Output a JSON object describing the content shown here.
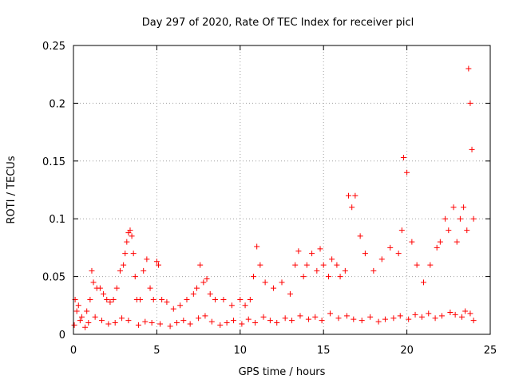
{
  "chart_data": {
    "type": "scatter",
    "title": "Day 297 of 2020, Rate Of TEC Index for receiver picl",
    "xlabel": "GPS time / hours",
    "ylabel": "ROTI / TECUs",
    "xlim": [
      0,
      25
    ],
    "ylim": [
      0,
      0.25
    ],
    "x_ticks": [
      "0",
      "5",
      "10",
      "15",
      "20",
      "25"
    ],
    "y_ticks": [
      "0",
      "0.05",
      "0.1",
      "0.15",
      "0.2",
      "0.25"
    ],
    "grid": true,
    "marker": "plus",
    "color": "#ff0000",
    "series": [
      {
        "x": [
          0.1,
          0.2,
          0.3,
          0.5,
          0.8,
          1.0,
          1.1,
          1.2,
          1.4,
          1.6,
          1.8,
          2.0,
          2.2,
          2.4,
          2.6,
          2.8,
          3.0,
          3.1,
          3.2,
          3.3,
          3.4,
          3.5,
          3.6,
          3.7,
          3.8,
          4.0,
          4.2,
          4.4,
          4.6,
          4.8,
          5.0,
          5.1,
          5.3,
          5.6,
          6.0,
          6.4,
          6.8,
          7.2,
          7.4,
          7.6,
          7.8,
          8.0,
          8.2,
          8.5,
          9.0,
          9.5,
          10.0,
          10.3,
          10.6,
          10.8,
          11.0,
          11.2,
          11.5,
          12.0,
          12.5,
          13.0,
          13.3,
          13.5,
          13.8,
          14.0,
          14.3,
          14.6,
          14.8,
          15.0,
          15.3,
          15.5,
          15.8,
          16.0,
          16.3,
          16.5,
          16.7,
          16.9,
          17.2,
          17.5,
          18.0,
          18.5,
          19.0,
          19.5,
          19.7,
          19.8,
          20.0,
          20.3,
          20.6,
          21.0,
          21.4,
          21.8,
          22.0,
          22.3,
          22.5,
          22.8,
          23.0,
          23.2,
          23.4,
          23.6,
          23.7,
          23.8,
          23.9,
          24.0
        ],
        "y": [
          0.03,
          0.02,
          0.025,
          0.015,
          0.02,
          0.03,
          0.055,
          0.045,
          0.04,
          0.04,
          0.035,
          0.03,
          0.028,
          0.03,
          0.04,
          0.055,
          0.06,
          0.07,
          0.08,
          0.088,
          0.09,
          0.085,
          0.07,
          0.05,
          0.03,
          0.03,
          0.055,
          0.065,
          0.04,
          0.03,
          0.063,
          0.06,
          0.03,
          0.028,
          0.022,
          0.025,
          0.03,
          0.035,
          0.04,
          0.06,
          0.045,
          0.048,
          0.035,
          0.03,
          0.03,
          0.025,
          0.03,
          0.025,
          0.03,
          0.05,
          0.076,
          0.06,
          0.045,
          0.04,
          0.045,
          0.035,
          0.06,
          0.072,
          0.05,
          0.06,
          0.07,
          0.055,
          0.074,
          0.06,
          0.05,
          0.065,
          0.06,
          0.05,
          0.055,
          0.12,
          0.11,
          0.12,
          0.085,
          0.07,
          0.055,
          0.065,
          0.075,
          0.07,
          0.09,
          0.153,
          0.14,
          0.08,
          0.06,
          0.045,
          0.06,
          0.075,
          0.08,
          0.1,
          0.09,
          0.11,
          0.08,
          0.1,
          0.11,
          0.09,
          0.23,
          0.2,
          0.16,
          0.1
        ]
      },
      {
        "x": [
          0.05,
          0.4,
          0.7,
          0.9,
          1.3,
          1.7,
          2.1,
          2.5,
          2.9,
          3.3,
          3.9,
          4.3,
          4.7,
          5.2,
          5.8,
          6.2,
          6.6,
          7.0,
          7.5,
          7.9,
          8.3,
          8.8,
          9.2,
          9.6,
          10.1,
          10.5,
          10.9,
          11.4,
          11.8,
          12.2,
          12.7,
          13.1,
          13.6,
          14.1,
          14.5,
          14.9,
          15.4,
          15.9,
          16.4,
          16.8,
          17.3,
          17.8,
          18.3,
          18.7,
          19.2,
          19.6,
          20.1,
          20.5,
          20.9,
          21.3,
          21.7,
          22.1,
          22.6,
          22.9,
          23.3,
          23.5,
          23.8,
          24.0
        ],
        "y": [
          0.008,
          0.012,
          0.006,
          0.01,
          0.015,
          0.012,
          0.009,
          0.01,
          0.014,
          0.012,
          0.008,
          0.011,
          0.01,
          0.009,
          0.007,
          0.01,
          0.012,
          0.009,
          0.014,
          0.016,
          0.011,
          0.008,
          0.01,
          0.012,
          0.009,
          0.013,
          0.01,
          0.015,
          0.012,
          0.01,
          0.014,
          0.012,
          0.016,
          0.013,
          0.015,
          0.012,
          0.018,
          0.014,
          0.016,
          0.013,
          0.012,
          0.015,
          0.011,
          0.013,
          0.014,
          0.016,
          0.013,
          0.017,
          0.015,
          0.018,
          0.014,
          0.016,
          0.019,
          0.017,
          0.015,
          0.02,
          0.018,
          0.012
        ]
      }
    ]
  }
}
